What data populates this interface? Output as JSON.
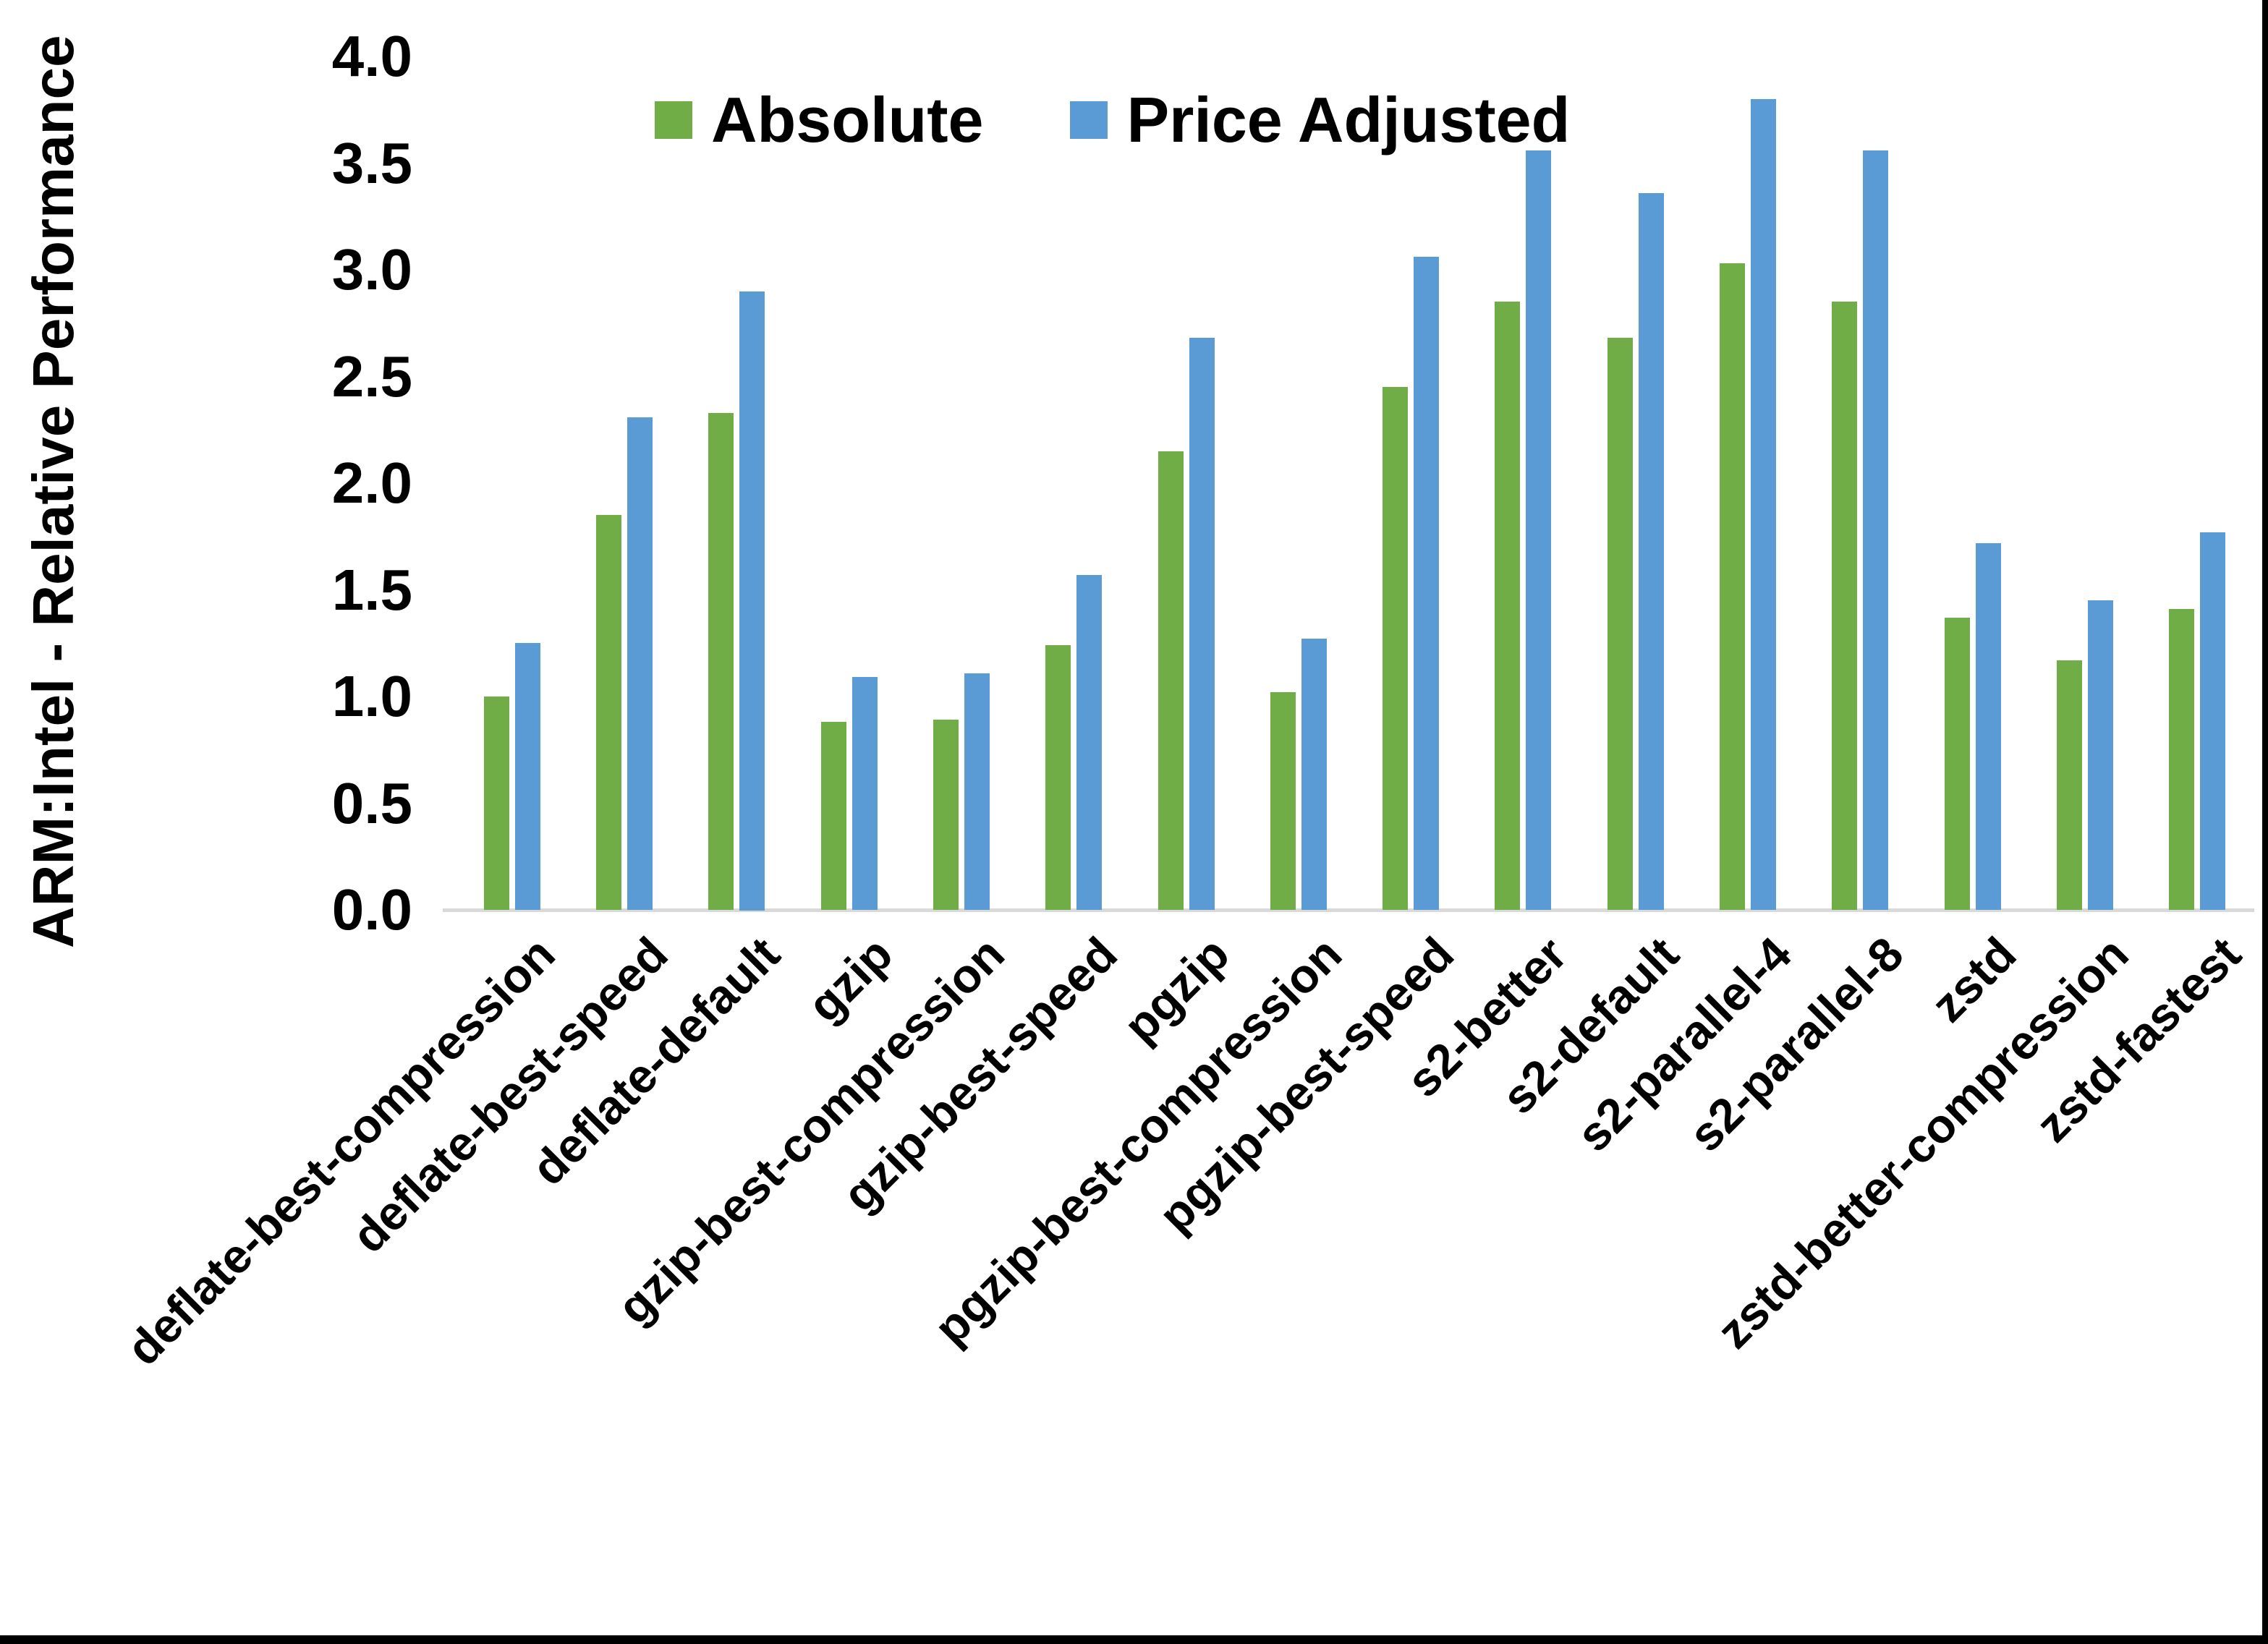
{
  "chart_data": {
    "type": "bar",
    "title": "",
    "xlabel": "",
    "ylabel": "ARM:Intel - Relative Performance",
    "ylim": [
      0.0,
      4.0
    ],
    "ytick_step": 0.5,
    "yticks": [
      "0.0",
      "0.5",
      "1.0",
      "1.5",
      "2.0",
      "2.5",
      "3.0",
      "3.5",
      "4.0"
    ],
    "grid": false,
    "legend_position": "top-center",
    "categories": [
      "deflate-best-compression",
      "deflate-best-speed",
      "deflate-default",
      "gzip",
      "gzip-best-compression",
      "gzip-best-speed",
      "pgzip",
      "pgzip-best-compression",
      "pgzip-best-speed",
      "s2-better",
      "s2-default",
      "s2-parallel-4",
      "s2-parallel-8",
      "zstd",
      "zstd-better-compression",
      "zstd-fastest"
    ],
    "series": [
      {
        "name": "Absolute",
        "color": "#70AD47",
        "values": [
          1.0,
          1.85,
          2.33,
          0.88,
          0.89,
          1.24,
          2.15,
          1.02,
          2.45,
          2.85,
          2.68,
          3.03,
          2.85,
          1.37,
          1.17,
          1.41
        ]
      },
      {
        "name": "Price Adjusted",
        "color": "#5B9BD5",
        "values": [
          1.25,
          2.31,
          2.9,
          1.09,
          1.11,
          1.57,
          2.68,
          1.27,
          3.06,
          3.56,
          3.36,
          3.8,
          3.56,
          1.72,
          1.45,
          1.77
        ]
      }
    ],
    "colors": {
      "background": "#FFFFFF",
      "axis_line": "#D9D9D9",
      "text": "#000000",
      "frame_border": "#000000"
    }
  }
}
